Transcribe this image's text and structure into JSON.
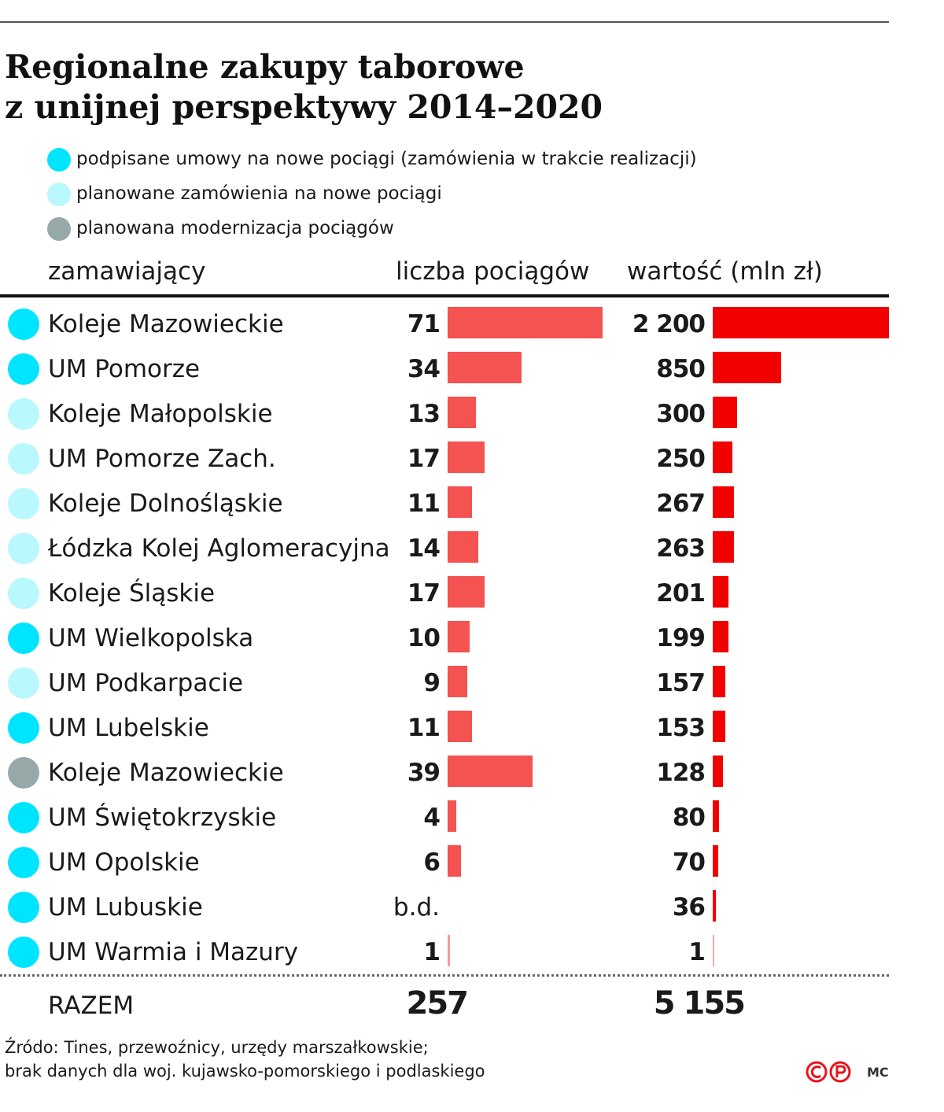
{
  "title_lines": [
    "Regionalne zakupy taborowe",
    "z unijnej perspektywy 2014–2020"
  ],
  "colors": {
    "signed": "#00e5ff",
    "planned": "#b9f8fc",
    "modernization": "#96a8a8",
    "count_bar": "#f55252",
    "value_bar": "#f20000"
  },
  "legend": [
    {
      "key": "signed",
      "label": "podpisane umowy na nowe pociągi (zamówienia w trakcie realizacji)"
    },
    {
      "key": "planned",
      "label": "planowane zamówienia na nowe pociągi"
    },
    {
      "key": "modernization",
      "label": "planowana modernizacja pociągów"
    }
  ],
  "columns": {
    "orderer": "zamawiający",
    "trains": "liczba pociągów",
    "value": "wartość (mln zł)"
  },
  "chart_data": {
    "type": "table",
    "rows": [
      {
        "name": "Koleje Mazowieckie",
        "category": "signed",
        "trains": 71,
        "trains_label": "71",
        "value": 2200,
        "value_label": "2 200"
      },
      {
        "name": "UM Pomorze",
        "category": "signed",
        "trains": 34,
        "trains_label": "34",
        "value": 850,
        "value_label": "850"
      },
      {
        "name": "Koleje Małopolskie",
        "category": "planned",
        "trains": 13,
        "trains_label": "13",
        "value": 300,
        "value_label": "300"
      },
      {
        "name": "UM Pomorze Zach.",
        "category": "planned",
        "trains": 17,
        "trains_label": "17",
        "value": 250,
        "value_label": "250"
      },
      {
        "name": "Koleje Dolnośląskie",
        "category": "planned",
        "trains": 11,
        "trains_label": "11",
        "value": 267,
        "value_label": "267"
      },
      {
        "name": "Łódzka Kolej Aglomeracyjna",
        "category": "planned",
        "trains": 14,
        "trains_label": "14",
        "value": 263,
        "value_label": "263"
      },
      {
        "name": "Koleje Śląskie",
        "category": "planned",
        "trains": 17,
        "trains_label": "17",
        "value": 201,
        "value_label": "201"
      },
      {
        "name": "UM Wielkopolska",
        "category": "signed",
        "trains": 10,
        "trains_label": "10",
        "value": 199,
        "value_label": "199"
      },
      {
        "name": "UM Podkarpacie",
        "category": "planned",
        "trains": 9,
        "trains_label": "9",
        "value": 157,
        "value_label": "157"
      },
      {
        "name": "UM Lubelskie",
        "category": "signed",
        "trains": 11,
        "trains_label": "11",
        "value": 153,
        "value_label": "153"
      },
      {
        "name": "Koleje Mazowieckie",
        "category": "modernization",
        "trains": 39,
        "trains_label": "39",
        "value": 128,
        "value_label": "128"
      },
      {
        "name": "UM Świętokrzyskie",
        "category": "signed",
        "trains": 4,
        "trains_label": "4",
        "value": 80,
        "value_label": "80"
      },
      {
        "name": "UM Opolskie",
        "category": "signed",
        "trains": 6,
        "trains_label": "6",
        "value": 70,
        "value_label": "70"
      },
      {
        "name": "UM Lubuskie",
        "category": "signed",
        "trains": null,
        "trains_label": "b.d.",
        "value": 36,
        "value_label": "36"
      },
      {
        "name": "UM Warmia i Mazury",
        "category": "signed",
        "trains": 1,
        "trains_label": "1",
        "value": 1,
        "value_label": "1"
      }
    ],
    "trains_max": 71,
    "value_max": 2200
  },
  "total": {
    "label": "RAZEM",
    "trains": "257",
    "value": "5 155"
  },
  "source_lines": [
    "Źródo: Tines, przewoźnicy, urzędy marszałkowskie;",
    "brak danych dla woj. kujawsko-pomorskiego i podlaskiego"
  ],
  "author": "MC"
}
